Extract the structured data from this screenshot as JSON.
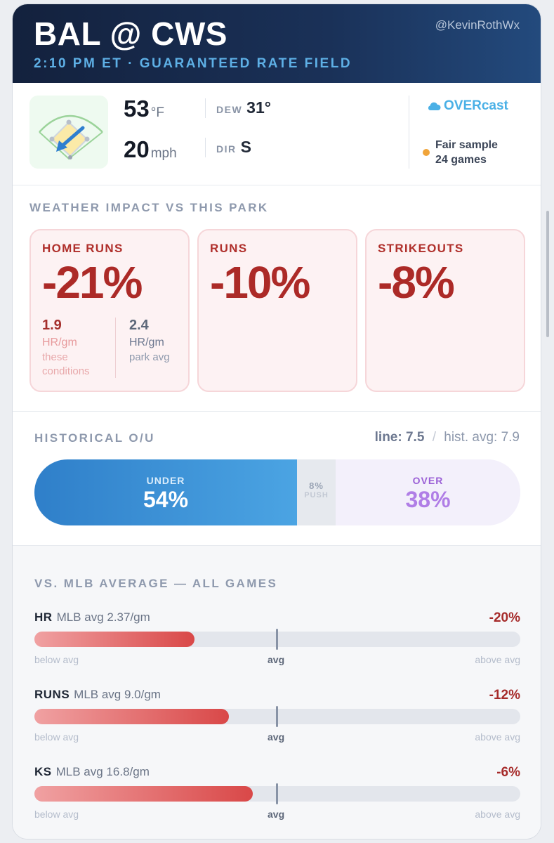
{
  "header": {
    "matchup": "BAL @ CWS",
    "subtitle": "2:10 PM ET · GUARANTEED RATE FIELD",
    "handle": "@KevinRothWx"
  },
  "weather": {
    "temp_value": "53",
    "temp_unit": "°F",
    "wind_value": "20",
    "wind_unit": "mph",
    "dew_label": "DEW",
    "dew_value": "31°",
    "dir_label": "DIR",
    "dir_value": "S",
    "sky": "OVERcast",
    "sample_line1": "Fair sample",
    "sample_line2": "24 games",
    "sample_color": "#f0a43a"
  },
  "impact": {
    "title": "WEATHER IMPACT VS THIS PARK",
    "cards": [
      {
        "label": "HOME RUNS",
        "value": "-21%"
      },
      {
        "label": "RUNS",
        "value": "-10%"
      },
      {
        "label": "STRIKEOUTS",
        "value": "-8%"
      }
    ],
    "hr_conditions": {
      "value": "1.9",
      "unit": "HR/gm",
      "note1": "these",
      "note2": "conditions"
    },
    "hr_park": {
      "value": "2.4",
      "unit": "HR/gm",
      "note1": "park avg"
    }
  },
  "ou": {
    "title": "HISTORICAL O/U",
    "line_label": "line:",
    "line_value": "7.5",
    "separator": "/",
    "hist_label": "hist. avg:",
    "hist_value": "7.9",
    "under_label": "UNDER",
    "under_value": "54%",
    "under_pct": 54,
    "push_label": "PUSH",
    "push_value": "8%",
    "push_pct": 8,
    "over_label": "OVER",
    "over_value": "38%",
    "over_pct": 38
  },
  "mlb": {
    "title": "VS. MLB AVERAGE — ALL GAMES",
    "scale_left": "below avg",
    "scale_mid": "avg",
    "scale_right": "above avg",
    "rows": [
      {
        "key": "HR",
        "avg": "MLB avg 2.37/gm",
        "pct": "-20%",
        "level": 0.33
      },
      {
        "key": "RUNS",
        "avg": "MLB avg 9.0/gm",
        "pct": "-12%",
        "level": 0.4
      },
      {
        "key": "KS",
        "avg": "MLB avg 16.8/gm",
        "pct": "-6%",
        "level": 0.45
      }
    ]
  }
}
